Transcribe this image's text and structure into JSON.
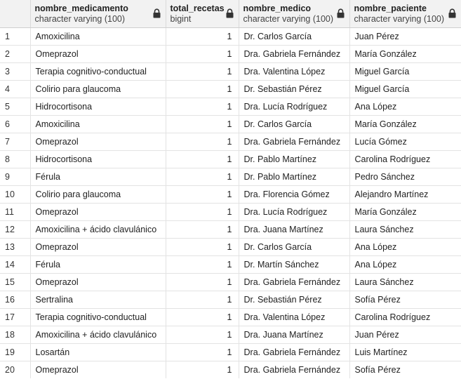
{
  "columns": [
    {
      "name": "nombre_medicamento",
      "type": "character varying (100)"
    },
    {
      "name": "total_recetas",
      "type": "bigint"
    },
    {
      "name": "nombre_medico",
      "type": "character varying (100)"
    },
    {
      "name": "nombre_paciente",
      "type": "character varying (100)"
    }
  ],
  "icons": {
    "column_lock": "lock-icon"
  },
  "rows": [
    {
      "n": "1",
      "cells": [
        "Amoxicilina",
        "1",
        "Dr. Carlos García",
        "Juan Pérez"
      ]
    },
    {
      "n": "2",
      "cells": [
        "Omeprazol",
        "1",
        "Dra. Gabriela Fernández",
        "María González"
      ]
    },
    {
      "n": "3",
      "cells": [
        "Terapia cognitivo-conductual",
        "1",
        "Dra. Valentina López",
        "Miguel García"
      ]
    },
    {
      "n": "4",
      "cells": [
        "Colirio para glaucoma",
        "1",
        "Dr. Sebastián Pérez",
        "Miguel García"
      ]
    },
    {
      "n": "5",
      "cells": [
        "Hidrocortisona",
        "1",
        "Dra. Lucía Rodríguez",
        "Ana López"
      ]
    },
    {
      "n": "6",
      "cells": [
        "Amoxicilina",
        "1",
        "Dr. Carlos García",
        "María González"
      ]
    },
    {
      "n": "7",
      "cells": [
        "Omeprazol",
        "1",
        "Dra. Gabriela Fernández",
        "Lucía Gómez"
      ]
    },
    {
      "n": "8",
      "cells": [
        "Hidrocortisona",
        "1",
        "Dr. Pablo Martínez",
        "Carolina Rodríguez"
      ]
    },
    {
      "n": "9",
      "cells": [
        "Férula",
        "1",
        "Dr. Pablo Martínez",
        "Pedro Sánchez"
      ]
    },
    {
      "n": "10",
      "cells": [
        "Colirio para glaucoma",
        "1",
        "Dra. Florencia Gómez",
        "Alejandro Martínez"
      ]
    },
    {
      "n": "11",
      "cells": [
        "Omeprazol",
        "1",
        "Dra. Lucía Rodríguez",
        "María González"
      ]
    },
    {
      "n": "12",
      "cells": [
        "Amoxicilina + ácido clavulánico",
        "1",
        "Dra. Juana Martínez",
        "Laura Sánchez"
      ]
    },
    {
      "n": "13",
      "cells": [
        "Omeprazol",
        "1",
        "Dr. Carlos García",
        "Ana López"
      ]
    },
    {
      "n": "14",
      "cells": [
        "Férula",
        "1",
        "Dr. Martín Sánchez",
        "Ana López"
      ]
    },
    {
      "n": "15",
      "cells": [
        "Omeprazol",
        "1",
        "Dra. Gabriela Fernández",
        "Laura Sánchez"
      ]
    },
    {
      "n": "16",
      "cells": [
        "Sertralina",
        "1",
        "Dr. Sebastián Pérez",
        "Sofía Pérez"
      ]
    },
    {
      "n": "17",
      "cells": [
        "Terapia cognitivo-conductual",
        "1",
        "Dra. Valentina López",
        "Carolina Rodríguez"
      ]
    },
    {
      "n": "18",
      "cells": [
        "Amoxicilina + ácido clavulánico",
        "1",
        "Dra. Juana Martínez",
        "Juan Pérez"
      ]
    },
    {
      "n": "19",
      "cells": [
        "Losartán",
        "1",
        "Dra. Gabriela Fernández",
        "Luis Martínez"
      ]
    },
    {
      "n": "20",
      "cells": [
        "Omeprazol",
        "1",
        "Dra. Gabriela Fernández",
        "Sofía Pérez"
      ]
    }
  ]
}
